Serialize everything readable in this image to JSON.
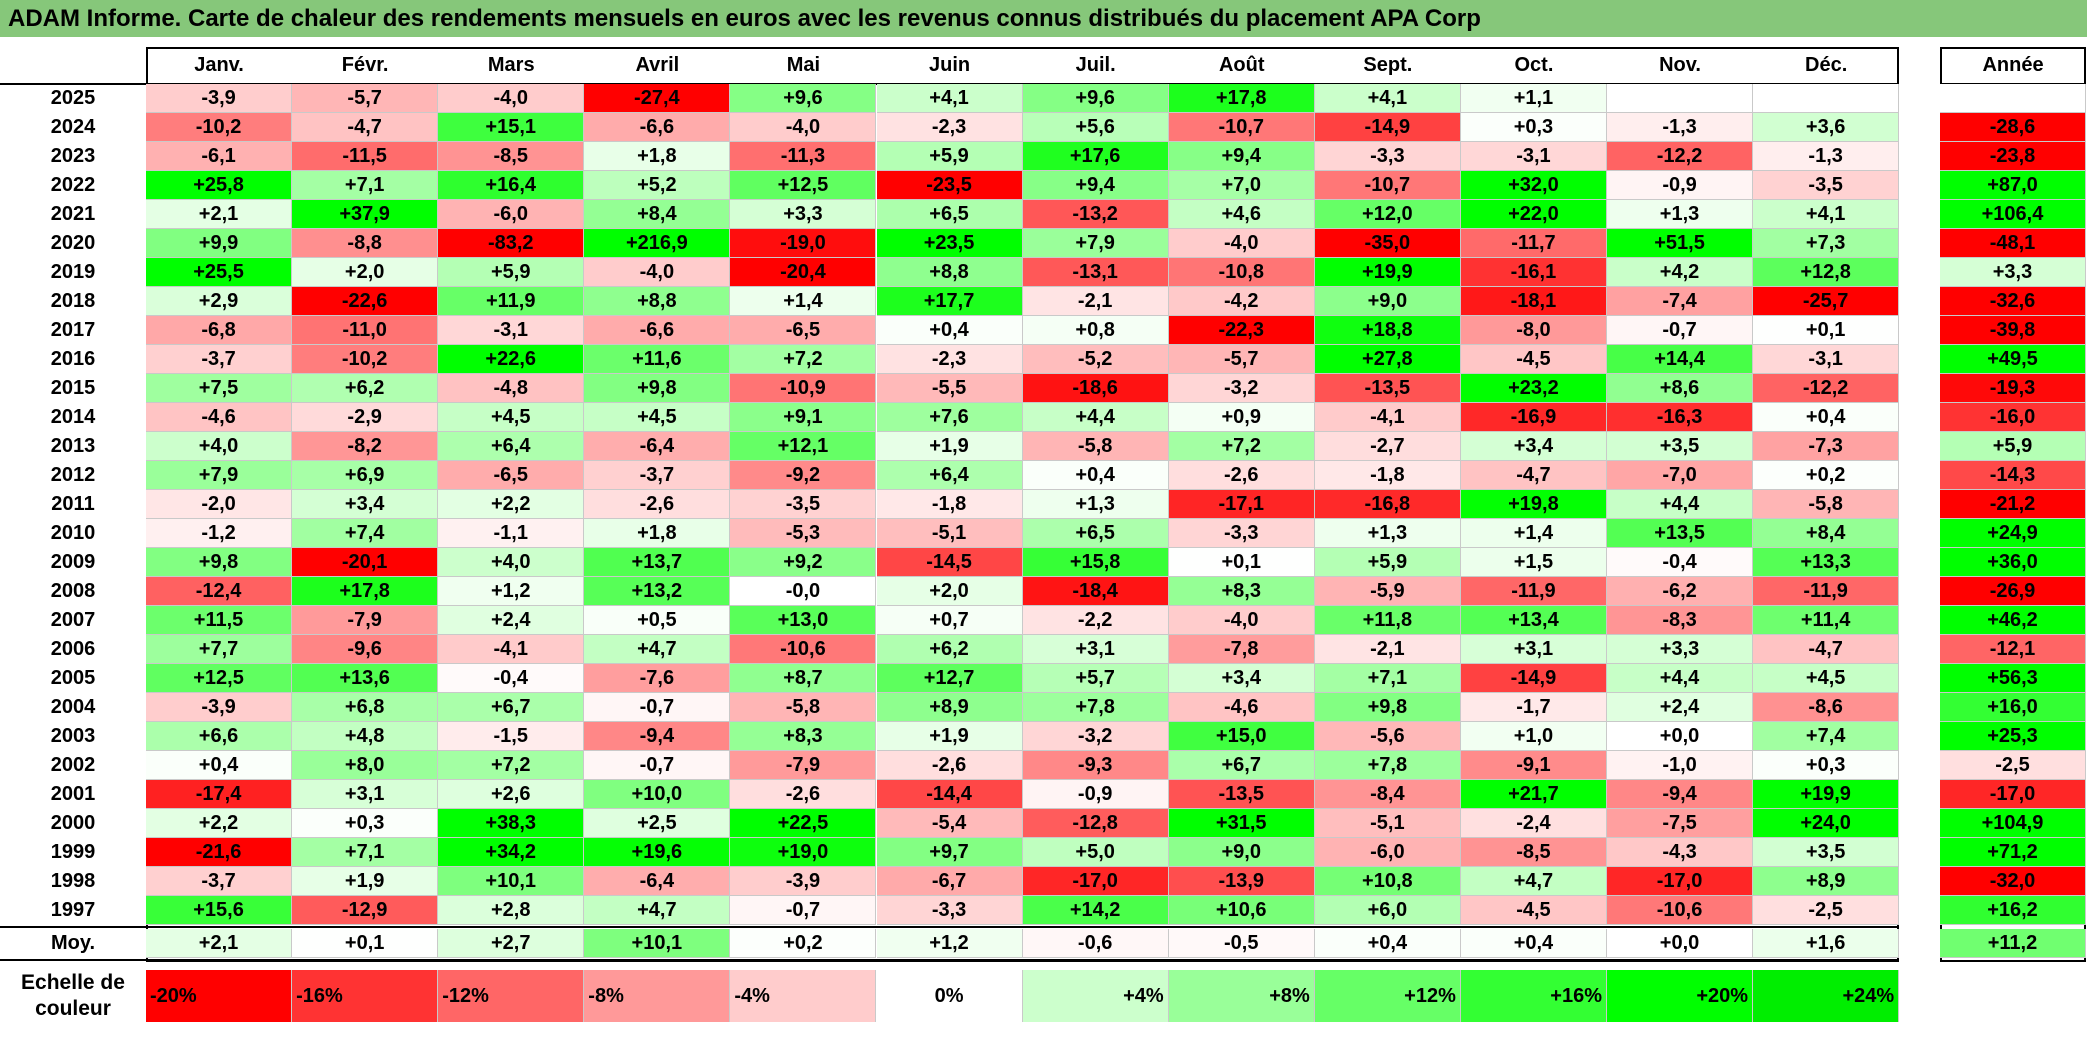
{
  "title": "ADAM Informe. Carte de chaleur des rendements mensuels en euros avec les revenus connus distribués du placement APA Corp",
  "chart_data": {
    "type": "heatmap",
    "columns": [
      "Janv.",
      "Févr.",
      "Mars",
      "Avril",
      "Mai",
      "Juin",
      "Juil.",
      "Août",
      "Sept.",
      "Oct.",
      "Nov.",
      "Déc."
    ],
    "year_column": "Année",
    "rows": [
      {
        "year": "2025",
        "values": [
          -3.9,
          -5.7,
          -4.0,
          -27.4,
          9.6,
          4.1,
          9.6,
          17.8,
          4.1,
          1.1,
          null,
          null
        ],
        "annual": null
      },
      {
        "year": "2024",
        "values": [
          -10.2,
          -4.7,
          15.1,
          -6.6,
          -4.0,
          -2.3,
          5.6,
          -10.7,
          -14.9,
          0.3,
          -1.3,
          3.6
        ],
        "annual": -28.6
      },
      {
        "year": "2023",
        "values": [
          -6.1,
          -11.5,
          -8.5,
          1.8,
          -11.3,
          5.9,
          17.6,
          9.4,
          -3.3,
          -3.1,
          -12.2,
          -1.3
        ],
        "annual": -23.8
      },
      {
        "year": "2022",
        "values": [
          25.8,
          7.1,
          16.4,
          5.2,
          12.5,
          -23.5,
          9.4,
          7.0,
          -10.7,
          32.0,
          -0.9,
          -3.5
        ],
        "annual": 87.0
      },
      {
        "year": "2021",
        "values": [
          2.1,
          37.9,
          -6.0,
          8.4,
          3.3,
          6.5,
          -13.2,
          4.6,
          12.0,
          22.0,
          1.3,
          4.1
        ],
        "annual": 106.4
      },
      {
        "year": "2020",
        "values": [
          9.9,
          -8.8,
          -83.2,
          216.9,
          -19.0,
          23.5,
          7.9,
          -4.0,
          -35.0,
          -11.7,
          51.5,
          7.3
        ],
        "annual": -48.1
      },
      {
        "year": "2019",
        "values": [
          25.5,
          2.0,
          5.9,
          -4.0,
          -20.4,
          8.8,
          -13.1,
          -10.8,
          19.9,
          -16.1,
          4.2,
          12.8
        ],
        "annual": 3.3
      },
      {
        "year": "2018",
        "values": [
          2.9,
          -22.6,
          11.9,
          8.8,
          1.4,
          17.7,
          -2.1,
          -4.2,
          9.0,
          -18.1,
          -7.4,
          -25.7
        ],
        "annual": -32.6
      },
      {
        "year": "2017",
        "values": [
          -6.8,
          -11.0,
          -3.1,
          -6.6,
          -6.5,
          0.4,
          0.8,
          -22.3,
          18.8,
          -8.0,
          -0.7,
          0.1
        ],
        "annual": -39.8
      },
      {
        "year": "2016",
        "values": [
          -3.7,
          -10.2,
          22.6,
          11.6,
          7.2,
          -2.3,
          -5.2,
          -5.7,
          27.8,
          -4.5,
          14.4,
          -3.1
        ],
        "annual": 49.5
      },
      {
        "year": "2015",
        "values": [
          7.5,
          6.2,
          -4.8,
          9.8,
          -10.9,
          -5.5,
          -18.6,
          -3.2,
          -13.5,
          23.2,
          8.6,
          -12.2
        ],
        "annual": -19.3
      },
      {
        "year": "2014",
        "values": [
          -4.6,
          -2.9,
          4.5,
          4.5,
          9.1,
          7.6,
          4.4,
          0.9,
          -4.1,
          -16.9,
          -16.3,
          0.4
        ],
        "annual": -16.0
      },
      {
        "year": "2013",
        "values": [
          4.0,
          -8.2,
          6.4,
          -6.4,
          12.1,
          1.9,
          -5.8,
          7.2,
          -2.7,
          3.4,
          3.5,
          -7.3
        ],
        "annual": 5.9
      },
      {
        "year": "2012",
        "values": [
          7.9,
          6.9,
          -6.5,
          -3.7,
          -9.2,
          6.4,
          0.4,
          -2.6,
          -1.8,
          -4.7,
          -7.0,
          0.2
        ],
        "annual": -14.3
      },
      {
        "year": "2011",
        "values": [
          -2.0,
          3.4,
          2.2,
          -2.6,
          -3.5,
          -1.8,
          1.3,
          -17.1,
          -16.8,
          19.8,
          4.4,
          -5.8
        ],
        "annual": -21.2
      },
      {
        "year": "2010",
        "values": [
          -1.2,
          7.4,
          -1.1,
          1.8,
          -5.3,
          -5.1,
          6.5,
          -3.3,
          1.3,
          1.4,
          13.5,
          8.4
        ],
        "annual": 24.9
      },
      {
        "year": "2009",
        "values": [
          9.8,
          -20.1,
          4.0,
          13.7,
          9.2,
          -14.5,
          15.8,
          0.1,
          5.9,
          1.5,
          -0.4,
          13.3
        ],
        "annual": 36.0
      },
      {
        "year": "2008",
        "values": [
          -12.4,
          17.8,
          1.2,
          13.2,
          -0.0,
          2.0,
          -18.4,
          8.3,
          -5.9,
          -11.9,
          -6.2,
          -11.9
        ],
        "annual": -26.9
      },
      {
        "year": "2007",
        "values": [
          11.5,
          -7.9,
          2.4,
          0.5,
          13.0,
          0.7,
          -2.2,
          -4.0,
          11.8,
          13.4,
          -8.3,
          11.4
        ],
        "annual": 46.2
      },
      {
        "year": "2006",
        "values": [
          7.7,
          -9.6,
          -4.1,
          4.7,
          -10.6,
          6.2,
          3.1,
          -7.8,
          -2.1,
          3.1,
          3.3,
          -4.7
        ],
        "annual": -12.1
      },
      {
        "year": "2005",
        "values": [
          12.5,
          13.6,
          -0.4,
          -7.6,
          8.7,
          12.7,
          5.7,
          3.4,
          7.1,
          -14.9,
          4.4,
          4.5
        ],
        "annual": 56.3
      },
      {
        "year": "2004",
        "values": [
          -3.9,
          6.8,
          6.7,
          -0.7,
          -5.8,
          8.9,
          7.8,
          -4.6,
          9.8,
          -1.7,
          2.4,
          -8.6
        ],
        "annual": 16.0
      },
      {
        "year": "2003",
        "values": [
          6.6,
          4.8,
          -1.5,
          -9.4,
          8.3,
          1.9,
          -3.2,
          15.0,
          -5.6,
          1.0,
          0.0,
          7.4
        ],
        "annual": 25.3
      },
      {
        "year": "2002",
        "values": [
          0.4,
          8.0,
          7.2,
          -0.7,
          -7.9,
          -2.6,
          -9.3,
          6.7,
          7.8,
          -9.1,
          -1.0,
          0.3
        ],
        "annual": -2.5
      },
      {
        "year": "2001",
        "values": [
          -17.4,
          3.1,
          2.6,
          10.0,
          -2.6,
          -14.4,
          -0.9,
          -13.5,
          -8.4,
          21.7,
          -9.4,
          19.9
        ],
        "annual": -17.0
      },
      {
        "year": "2000",
        "values": [
          2.2,
          0.3,
          38.3,
          2.5,
          22.5,
          -5.4,
          -12.8,
          31.5,
          -5.1,
          -2.4,
          -7.5,
          24.0
        ],
        "annual": 104.9
      },
      {
        "year": "1999",
        "values": [
          -21.6,
          7.1,
          34.2,
          19.6,
          19.0,
          9.7,
          5.0,
          9.0,
          -6.0,
          -8.5,
          -4.3,
          3.5
        ],
        "annual": 71.2
      },
      {
        "year": "1998",
        "values": [
          -3.7,
          1.9,
          10.1,
          -6.4,
          -3.9,
          -6.7,
          -17.0,
          -13.9,
          10.8,
          4.7,
          -17.0,
          8.9
        ],
        "annual": -32.0
      },
      {
        "year": "1997",
        "values": [
          15.6,
          -12.9,
          2.8,
          4.7,
          -0.7,
          -3.3,
          14.2,
          10.6,
          6.0,
          -4.5,
          -10.6,
          -2.5
        ],
        "annual": 16.2
      }
    ],
    "average": {
      "label": "Moy.",
      "values": [
        2.1,
        0.1,
        2.7,
        10.1,
        0.2,
        1.2,
        -0.6,
        -0.5,
        0.4,
        0.4,
        0.0,
        1.6
      ],
      "annual": 11.2
    },
    "color_scale": {
      "label": "Echelle de couleur",
      "steps": [
        {
          "text": "-20%",
          "color": "#ff0000",
          "align": "left"
        },
        {
          "text": "-16%",
          "color": "#ff3333",
          "align": "left"
        },
        {
          "text": "-12%",
          "color": "#ff6666",
          "align": "left"
        },
        {
          "text": "-8%",
          "color": "#ff9999",
          "align": "left"
        },
        {
          "text": "-4%",
          "color": "#ffcccc",
          "align": "left"
        },
        {
          "text": "0%",
          "color": "#ffffff",
          "align": "center"
        },
        {
          "text": "+4%",
          "color": "#ccffcc",
          "align": "right"
        },
        {
          "text": "+8%",
          "color": "#99ff99",
          "align": "right"
        },
        {
          "text": "+12%",
          "color": "#66ff66",
          "align": "right"
        },
        {
          "text": "+16%",
          "color": "#33ff33",
          "align": "right"
        },
        {
          "text": "+20%",
          "color": "#00ff00",
          "align": "right"
        },
        {
          "text": "+24%",
          "color": "#00ee00",
          "align": "right"
        }
      ]
    }
  }
}
